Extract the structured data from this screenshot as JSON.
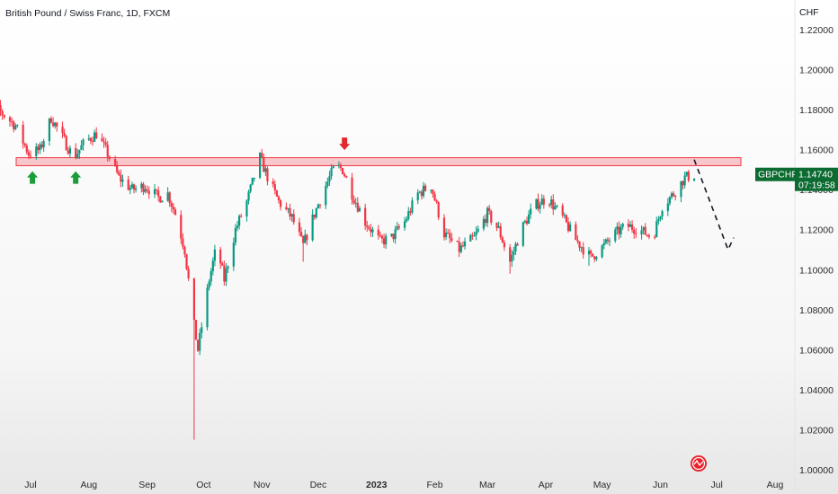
{
  "chart_data": {
    "type": "candlestick",
    "title": "British Pound / Swiss Franc, 1D, FXCM",
    "unit_label": "CHF",
    "symbol": "GBPCHF",
    "last_price": "1.14740",
    "countdown": "07:19:58",
    "ylim": [
      1.0,
      1.23
    ],
    "y_ticks": [
      "1.22000",
      "1.20000",
      "1.18000",
      "1.16000",
      "1.14000",
      "1.12000",
      "1.10000",
      "1.08000",
      "1.06000",
      "1.04000",
      "1.02000",
      "1.00000"
    ],
    "x_ticks": [
      {
        "label": "Jul",
        "date": "2022-07-01"
      },
      {
        "label": "Aug",
        "date": "2022-08-01"
      },
      {
        "label": "Sep",
        "date": "2022-09-01"
      },
      {
        "label": "Oct",
        "date": "2022-10-01"
      },
      {
        "label": "Nov",
        "date": "2022-11-01"
      },
      {
        "label": "Dec",
        "date": "2022-12-01"
      },
      {
        "label": "2023",
        "date": "2023-01-01",
        "bold": true
      },
      {
        "label": "Feb",
        "date": "2023-02-01"
      },
      {
        "label": "Mar",
        "date": "2023-03-01"
      },
      {
        "label": "Apr",
        "date": "2023-04-01"
      },
      {
        "label": "May",
        "date": "2023-05-01"
      },
      {
        "label": "Jun",
        "date": "2023-06-01"
      },
      {
        "label": "Jul",
        "date": "2023-07-01"
      },
      {
        "label": "Aug",
        "date": "2023-08-01"
      }
    ],
    "close_path": [
      [
        "2022-06-01",
        1.21
      ],
      [
        "2022-06-08",
        1.185
      ],
      [
        "2022-06-16",
        1.178
      ],
      [
        "2022-06-23",
        1.172
      ],
      [
        "2022-06-30",
        1.158
      ],
      [
        "2022-07-06",
        1.16
      ],
      [
        "2022-07-12",
        1.176
      ],
      [
        "2022-07-18",
        1.166
      ],
      [
        "2022-07-24",
        1.156
      ],
      [
        "2022-07-30",
        1.164
      ],
      [
        "2022-08-05",
        1.168
      ],
      [
        "2022-08-11",
        1.158
      ],
      [
        "2022-08-17",
        1.146
      ],
      [
        "2022-08-24",
        1.14
      ],
      [
        "2022-08-31",
        1.142
      ],
      [
        "2022-09-07",
        1.136
      ],
      [
        "2022-09-12",
        1.138
      ],
      [
        "2022-09-16",
        1.128
      ],
      [
        "2022-09-21",
        1.11
      ],
      [
        "2022-09-26",
        1.072
      ],
      [
        "2022-09-28",
        1.06
      ],
      [
        "2022-10-04",
        1.095
      ],
      [
        "2022-10-08",
        1.112
      ],
      [
        "2022-10-12",
        1.095
      ],
      [
        "2022-10-18",
        1.12
      ],
      [
        "2022-10-24",
        1.134
      ],
      [
        "2022-10-31",
        1.156
      ],
      [
        "2022-11-05",
        1.144
      ],
      [
        "2022-11-10",
        1.134
      ],
      [
        "2022-11-17",
        1.126
      ],
      [
        "2022-11-23",
        1.112
      ],
      [
        "2022-11-29",
        1.128
      ],
      [
        "2022-12-05",
        1.142
      ],
      [
        "2022-12-10",
        1.152
      ],
      [
        "2022-12-14",
        1.15
      ],
      [
        "2022-12-19",
        1.138
      ],
      [
        "2022-12-26",
        1.124
      ],
      [
        "2023-01-03",
        1.114
      ],
      [
        "2023-01-09",
        1.116
      ],
      [
        "2023-01-16",
        1.124
      ],
      [
        "2023-01-23",
        1.138
      ],
      [
        "2023-01-30",
        1.142
      ],
      [
        "2023-02-06",
        1.118
      ],
      [
        "2023-02-14",
        1.11
      ],
      [
        "2023-02-22",
        1.116
      ],
      [
        "2023-03-01",
        1.128
      ],
      [
        "2023-03-07",
        1.12
      ],
      [
        "2023-03-13",
        1.104
      ],
      [
        "2023-03-19",
        1.12
      ],
      [
        "2023-03-26",
        1.132
      ],
      [
        "2023-04-02",
        1.136
      ],
      [
        "2023-04-10",
        1.126
      ],
      [
        "2023-04-17",
        1.115
      ],
      [
        "2023-04-25",
        1.106
      ],
      [
        "2023-05-02",
        1.112
      ],
      [
        "2023-05-08",
        1.118
      ],
      [
        "2023-05-14",
        1.122
      ],
      [
        "2023-05-21",
        1.12
      ],
      [
        "2023-05-28",
        1.116
      ],
      [
        "2023-06-02",
        1.132
      ],
      [
        "2023-06-08",
        1.138
      ],
      [
        "2023-06-14",
        1.146
      ],
      [
        "2023-06-19",
        1.1474
      ]
    ],
    "wicks": [
      {
        "date": "2022-09-26",
        "low": 1.015
      },
      {
        "date": "2022-11-23",
        "low": 1.104
      },
      {
        "date": "2023-03-13",
        "low": 1.098
      },
      {
        "date": "2023-04-24",
        "low": 1.102
      }
    ],
    "resistance_zone": {
      "from": 1.152,
      "to": 1.156
    },
    "projection": [
      [
        "2023-06-19",
        1.155
      ],
      [
        "2023-07-07",
        1.11
      ],
      [
        "2023-07-10",
        1.116
      ]
    ],
    "up_arrows": [
      {
        "date": "2022-07-02",
        "value": 1.151
      },
      {
        "date": "2022-07-25",
        "value": 1.151
      }
    ],
    "down_arrows": [
      {
        "date": "2022-12-15",
        "value": 1.158
      }
    ],
    "colors": {
      "bull": "#26a69a",
      "bull_dark": "#089981",
      "bear": "#f23645",
      "zone_fill": "#f8c7cb",
      "zone_stroke": "#f23645",
      "arrow_green": "#1b9e3a",
      "arrow_red": "#e0282e",
      "badge": "#0b6b31",
      "projection": "#131722"
    }
  }
}
